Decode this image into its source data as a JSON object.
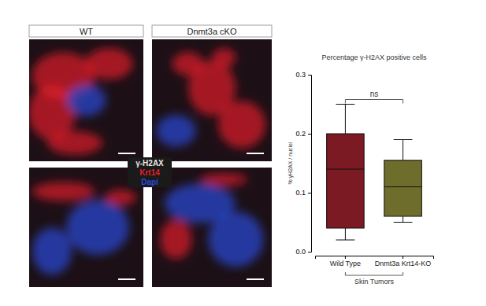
{
  "image_panels": {
    "column_labels": [
      "WT",
      "Dnmt3a cKO"
    ],
    "stains": [
      {
        "label": "γ-H2AX",
        "color": "#e8e8e8"
      },
      {
        "label": "Krt14",
        "color": "#e0202a"
      },
      {
        "label": "Dapi",
        "color": "#2a4ad8"
      }
    ]
  },
  "chart_data": {
    "type": "box",
    "title": "Percentage γ-H2AX positive cells",
    "categories": [
      "Wild Type",
      "Dnmt3a Krt14-KO"
    ],
    "stats": [
      {
        "min": 0.02,
        "q1": 0.04,
        "median": 0.14,
        "q3": 0.2,
        "max": 0.25
      },
      {
        "min": 0.05,
        "q1": 0.06,
        "median": 0.11,
        "q3": 0.155,
        "max": 0.19
      }
    ],
    "colors": [
      "#7b1a22",
      "#6e6d2c"
    ],
    "xlabel": "Skin Tumors",
    "ylabel": "% γH2AX / nuclei",
    "ylim": [
      0,
      0.3
    ],
    "yticks": [
      {
        "value": 0,
        "label": "0.0"
      },
      0.1,
      0.2,
      0.3
    ],
    "annotation": "ns",
    "grid": false
  }
}
